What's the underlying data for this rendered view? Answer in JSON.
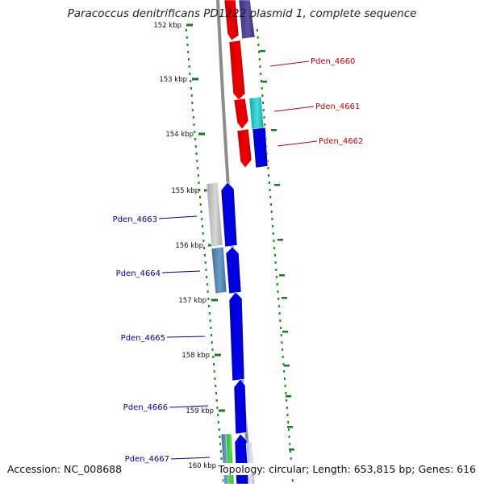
{
  "title": "Paracoccus denitrificans PD1222 plasmid 1, complete sequence",
  "footer": {
    "accession": "Accession: NC_008688",
    "summary": "Topology: circular; Length: 653,815 bp; Genes: 616"
  },
  "ticks": [
    "152 kbp",
    "153 kbp",
    "154 kbp",
    "155 kbp",
    "156 kbp",
    "157 kbp",
    "158 kbp",
    "159 kbp",
    "160 kbp"
  ],
  "gene_labels": [
    {
      "text": "Pden_4660",
      "color": "#cc0000"
    },
    {
      "text": "Pden_4661",
      "color": "#cc0000"
    },
    {
      "text": "Pden_4662",
      "color": "#cc0000"
    },
    {
      "text": "Pden_4663",
      "color": "#00009a"
    },
    {
      "text": "Pden_4664",
      "color": "#00009a"
    },
    {
      "text": "Pden_4665",
      "color": "#00009a"
    },
    {
      "text": "Pden_4666",
      "color": "#00009a"
    },
    {
      "text": "Pden_4667",
      "color": "#00009a"
    }
  ],
  "colors": {
    "backbone": "#8c8c8c",
    "tick": "#1a7a1a",
    "gc_dots": "#1a8a1a",
    "red_gene": "#ee0000",
    "blue_gene": "#0000ee",
    "cyan_gene": "#22cccc",
    "gray_gene": "#bfbfbf",
    "steel_gene": "#4f86b8",
    "purple_gene": "#4b3f8f",
    "green_gene": "#33cc33",
    "lavender_gene": "#c8c8f0"
  }
}
